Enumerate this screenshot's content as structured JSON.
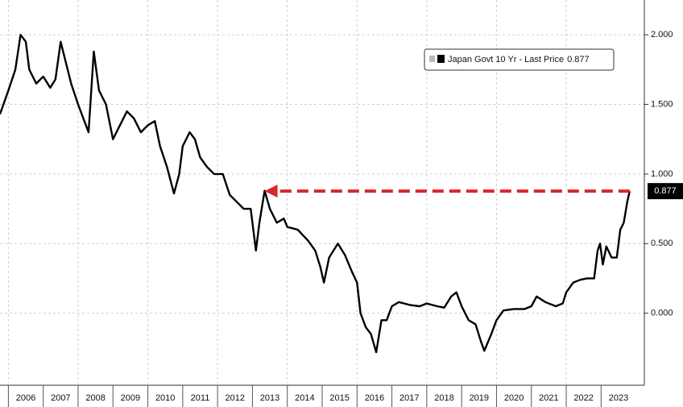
{
  "chart_data": {
    "type": "line",
    "x": [
      2005.76,
      2006.0,
      2006.2,
      2006.35,
      2006.5,
      2006.6,
      2006.8,
      2007.0,
      2007.2,
      2007.35,
      2007.5,
      2007.6,
      2007.8,
      2008.0,
      2008.15,
      2008.3,
      2008.45,
      2008.6,
      2008.8,
      2009.0,
      2009.2,
      2009.4,
      2009.6,
      2009.8,
      2010.0,
      2010.2,
      2010.35,
      2010.55,
      2010.75,
      2010.9,
      2011.0,
      2011.2,
      2011.35,
      2011.5,
      2011.7,
      2011.9,
      2012.0,
      2012.15,
      2012.35,
      2012.55,
      2012.75,
      2012.95,
      2013.1,
      2013.2,
      2013.35,
      2013.5,
      2013.7,
      2013.9,
      2014.0,
      2014.3,
      2014.6,
      2014.8,
      2014.95,
      2015.05,
      2015.2,
      2015.45,
      2015.65,
      2015.85,
      2016.0,
      2016.1,
      2016.25,
      2016.4,
      2016.55,
      2016.7,
      2016.85,
      2017.0,
      2017.2,
      2017.5,
      2017.8,
      2018.0,
      2018.3,
      2018.5,
      2018.7,
      2018.85,
      2019.0,
      2019.2,
      2019.4,
      2019.55,
      2019.65,
      2019.85,
      2020.0,
      2020.2,
      2020.5,
      2020.8,
      2021.0,
      2021.15,
      2021.4,
      2021.7,
      2021.9,
      2022.0,
      2022.2,
      2022.4,
      2022.6,
      2022.8,
      2022.9,
      2022.97,
      2023.05,
      2023.15,
      2023.3,
      2023.45,
      2023.55,
      2023.65,
      2023.75,
      2023.82
    ],
    "series": [
      {
        "name": "Japan Govt 10 Yr - Last Price",
        "color": "#000000",
        "values": [
          1.43,
          1.6,
          1.75,
          2.0,
          1.95,
          1.75,
          1.65,
          1.7,
          1.62,
          1.68,
          1.95,
          1.85,
          1.65,
          1.5,
          1.4,
          1.3,
          1.88,
          1.6,
          1.5,
          1.25,
          1.35,
          1.45,
          1.4,
          1.3,
          1.35,
          1.38,
          1.2,
          1.05,
          0.86,
          1.0,
          1.2,
          1.3,
          1.25,
          1.12,
          1.05,
          1.0,
          1.0,
          1.0,
          0.85,
          0.8,
          0.75,
          0.75,
          0.45,
          0.65,
          0.88,
          0.75,
          0.65,
          0.68,
          0.62,
          0.6,
          0.52,
          0.45,
          0.33,
          0.22,
          0.4,
          0.5,
          0.42,
          0.3,
          0.22,
          0.0,
          -0.1,
          -0.15,
          -0.28,
          -0.05,
          -0.05,
          0.05,
          0.08,
          0.06,
          0.05,
          0.07,
          0.05,
          0.04,
          0.12,
          0.15,
          0.05,
          -0.05,
          -0.08,
          -0.2,
          -0.27,
          -0.15,
          -0.05,
          0.02,
          0.03,
          0.03,
          0.05,
          0.12,
          0.08,
          0.05,
          0.07,
          0.15,
          0.22,
          0.24,
          0.25,
          0.25,
          0.45,
          0.5,
          0.35,
          0.48,
          0.4,
          0.4,
          0.6,
          0.65,
          0.8,
          0.877
        ],
        "value_labels": {
          "103": "0.877"
        }
      }
    ],
    "xlim": [
      2005.76,
      2024.24
    ],
    "xticks": [
      {
        "value": 2006.5,
        "label": "2006"
      },
      {
        "value": 2007.5,
        "label": "2007"
      },
      {
        "value": 2008.5,
        "label": "2008"
      },
      {
        "value": 2009.5,
        "label": "2009"
      },
      {
        "value": 2010.5,
        "label": "2010"
      },
      {
        "value": 2011.5,
        "label": "2011"
      },
      {
        "value": 2012.5,
        "label": "2012"
      },
      {
        "value": 2013.5,
        "label": "2013"
      },
      {
        "value": 2014.5,
        "label": "2014"
      },
      {
        "value": 2015.5,
        "label": "2015"
      },
      {
        "value": 2016.5,
        "label": "2016"
      },
      {
        "value": 2017.5,
        "label": "2017"
      },
      {
        "value": 2018.5,
        "label": "2018"
      },
      {
        "value": 2019.5,
        "label": "2019"
      },
      {
        "value": 2020.5,
        "label": "2020"
      },
      {
        "value": 2021.5,
        "label": "2021"
      },
      {
        "value": 2022.5,
        "label": "2022"
      },
      {
        "value": 2023.5,
        "label": "2023"
      }
    ],
    "ylim": [
      -0.5,
      2.25
    ],
    "yticks": [
      {
        "value": 0,
        "label": "0.000"
      },
      {
        "value": 0.5,
        "label": "0.500"
      },
      {
        "value": 1,
        "label": "1.000"
      },
      {
        "value": 1.5,
        "label": "1.500"
      },
      {
        "value": 2,
        "label": "2.000"
      }
    ],
    "grid": true,
    "legend": "top-right",
    "annotation": {
      "x": [
        2013.35,
        2023.82
      ],
      "y": 0.877,
      "color": "#d9262c"
    }
  }
}
